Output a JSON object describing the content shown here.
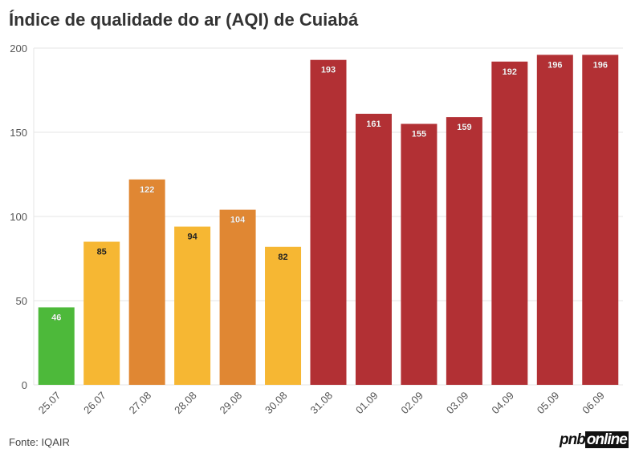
{
  "title": "Índice de qualidade do ar (AQI) de Cuiabá",
  "source": "Fonte: IQAIR",
  "logo": "pnbonline",
  "logo_parts": [
    "pnb",
    "online"
  ],
  "colors": {
    "good": "#4db93a",
    "moderate": "#f6b733",
    "unhealthy_sensitive": "#e08733",
    "unhealthy": "#b23034"
  },
  "chart_data": {
    "type": "bar",
    "title": "Índice de qualidade do ar (AQI) de Cuiabá",
    "xlabel": "",
    "ylabel": "",
    "ylim": [
      0,
      200
    ],
    "yticks": [
      0,
      50,
      100,
      150,
      200
    ],
    "grid": true,
    "categories": [
      "25.07",
      "26.07",
      "27.08",
      "28.08",
      "29.08",
      "30.08",
      "31.08",
      "01.09",
      "02.09",
      "03.09",
      "04.09",
      "05.09",
      "06.09"
    ],
    "values": [
      46,
      85,
      122,
      94,
      104,
      82,
      193,
      161,
      155,
      159,
      192,
      196,
      196
    ],
    "levels": [
      "good",
      "moderate",
      "unhealthy_sensitive",
      "moderate",
      "unhealthy_sensitive",
      "moderate",
      "unhealthy",
      "unhealthy",
      "unhealthy",
      "unhealthy",
      "unhealthy",
      "unhealthy",
      "unhealthy"
    ]
  }
}
